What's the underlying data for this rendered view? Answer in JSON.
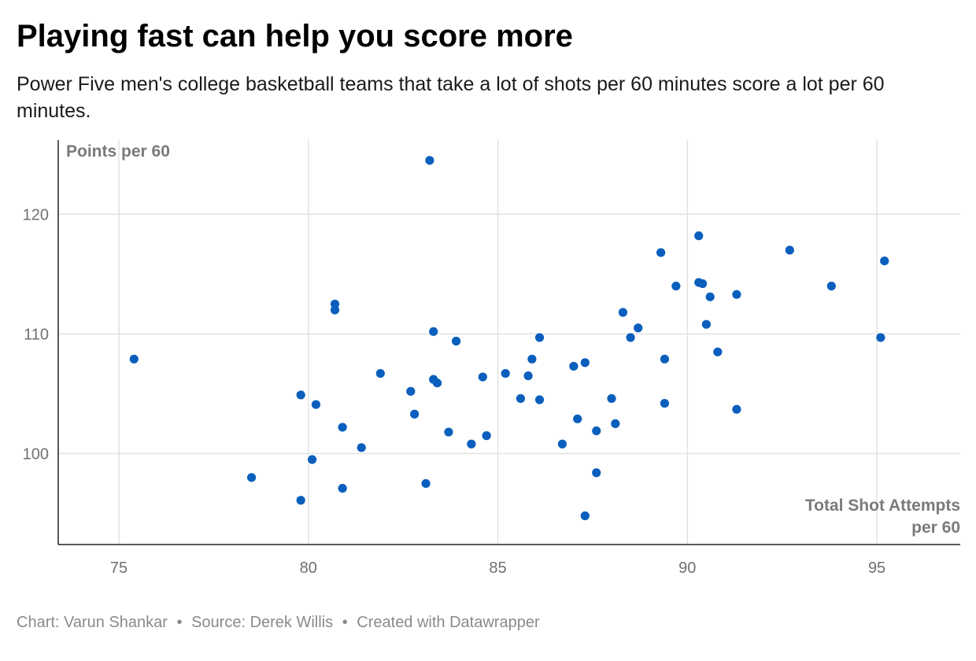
{
  "header": {
    "title": "Playing fast can help you score more",
    "subtitle": "Power Five men's college basketball teams that take a lot of shots per 60 minutes score a lot per 60 minutes."
  },
  "footer": {
    "chart_credit": "Chart: Varun Shankar",
    "source": "Source: Derek Willis",
    "created_with": "Created with Datawrapper",
    "separator": "•"
  },
  "chart_data": {
    "type": "scatter",
    "ylabel": "Points per 60",
    "xlabel_lines": [
      "Total Shot Attempts",
      "per 60"
    ],
    "xlim": [
      73.4,
      97.2
    ],
    "ylim": [
      92.4,
      126.2
    ],
    "x_ticks": [
      75,
      80,
      85,
      90,
      95
    ],
    "y_ticks": [
      100,
      110,
      120
    ],
    "grid": true,
    "point_color": "#0a5fbd",
    "points": [
      [
        75.4,
        107.9
      ],
      [
        78.5,
        98.0
      ],
      [
        79.8,
        104.9
      ],
      [
        79.8,
        96.1
      ],
      [
        80.1,
        99.5
      ],
      [
        80.2,
        104.1
      ],
      [
        80.7,
        112.5
      ],
      [
        80.7,
        112.0
      ],
      [
        80.9,
        97.1
      ],
      [
        80.9,
        102.2
      ],
      [
        81.4,
        100.5
      ],
      [
        81.9,
        106.7
      ],
      [
        82.7,
        105.2
      ],
      [
        82.8,
        103.3
      ],
      [
        83.1,
        97.5
      ],
      [
        83.2,
        124.5
      ],
      [
        83.3,
        110.2
      ],
      [
        83.3,
        106.2
      ],
      [
        83.4,
        105.9
      ],
      [
        83.7,
        101.8
      ],
      [
        83.9,
        109.4
      ],
      [
        84.3,
        100.8
      ],
      [
        84.6,
        106.4
      ],
      [
        84.7,
        101.5
      ],
      [
        85.2,
        106.7
      ],
      [
        85.6,
        104.6
      ],
      [
        85.8,
        106.5
      ],
      [
        85.9,
        107.9
      ],
      [
        86.1,
        109.7
      ],
      [
        86.1,
        104.5
      ],
      [
        86.7,
        100.8
      ],
      [
        87.0,
        107.3
      ],
      [
        87.1,
        102.9
      ],
      [
        87.3,
        107.6
      ],
      [
        87.3,
        94.8
      ],
      [
        87.6,
        101.9
      ],
      [
        87.6,
        98.4
      ],
      [
        88.0,
        104.6
      ],
      [
        88.1,
        102.5
      ],
      [
        88.3,
        111.8
      ],
      [
        88.5,
        109.7
      ],
      [
        88.7,
        110.5
      ],
      [
        89.3,
        116.8
      ],
      [
        89.4,
        107.9
      ],
      [
        89.4,
        104.2
      ],
      [
        89.7,
        114.0
      ],
      [
        90.3,
        114.3
      ],
      [
        90.3,
        118.2
      ],
      [
        90.4,
        114.2
      ],
      [
        90.5,
        110.8
      ],
      [
        90.6,
        113.1
      ],
      [
        90.8,
        108.5
      ],
      [
        91.3,
        113.3
      ],
      [
        91.3,
        103.7
      ],
      [
        92.7,
        117.0
      ],
      [
        93.8,
        114.0
      ],
      [
        95.1,
        109.7
      ],
      [
        95.2,
        116.1
      ]
    ]
  }
}
